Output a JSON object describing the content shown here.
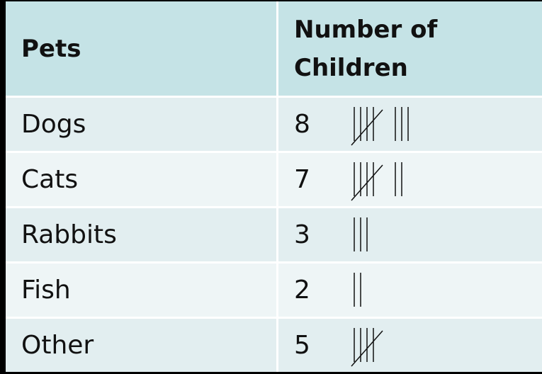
{
  "table": {
    "header": [
      "Pets",
      "Number of Children"
    ],
    "rows": [
      [
        "Dogs",
        8
      ],
      [
        "Cats",
        7
      ],
      [
        "Rabbits",
        3
      ],
      [
        "Fish",
        2
      ],
      [
        "Other",
        5
      ]
    ]
  }
}
